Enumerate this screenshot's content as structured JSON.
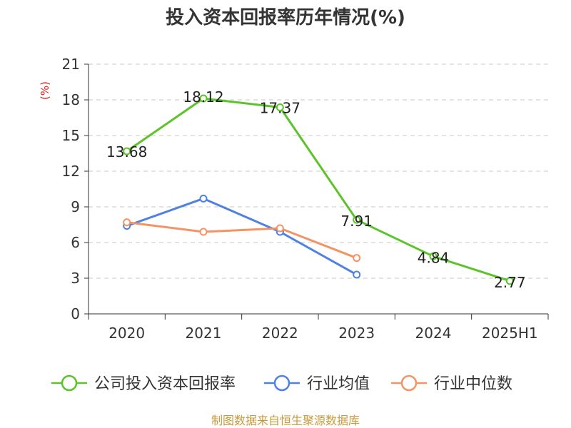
{
  "chart_data": {
    "type": "line",
    "title": "投入资本回报率历年情况(%)",
    "ylabel": "(%)",
    "categories": [
      "2020",
      "2021",
      "2022",
      "2023",
      "2024",
      "2025H1"
    ],
    "ylim": [
      0,
      21
    ],
    "yticks": [
      0,
      3,
      6,
      9,
      12,
      15,
      18,
      21
    ],
    "grid": true,
    "legend_position": "bottom",
    "series": [
      {
        "name": "公司投入资本回报率",
        "color": "#5cc42a",
        "values": [
          13.68,
          18.12,
          17.37,
          7.91,
          4.84,
          2.77
        ],
        "data_labels": [
          "13.68",
          "18.12",
          "17.37",
          "7.91",
          "4.84",
          "2.77"
        ]
      },
      {
        "name": "行业均值",
        "color": "#4f81e0",
        "values": [
          7.4,
          9.7,
          6.9,
          3.3,
          null,
          null
        ]
      },
      {
        "name": "行业中位数",
        "color": "#f39466",
        "values": [
          7.7,
          6.9,
          7.2,
          4.7,
          null,
          null
        ]
      }
    ]
  },
  "source": "制图数据来自恒生聚源数据库"
}
